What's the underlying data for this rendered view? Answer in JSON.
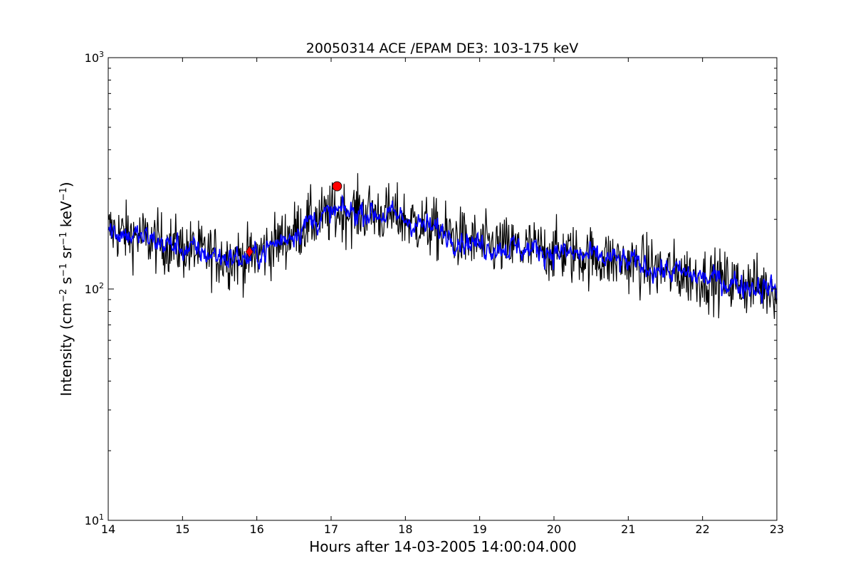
{
  "chart_data": {
    "type": "line",
    "title": "20050314 ACE /EPAM DE3: 103-175 keV",
    "xlabel": "Hours after 14-03-2005 14:00:04.000",
    "ylabel_main": "Intensity (cm",
    "ylabel_sup1": "−2",
    "ylabel_s": " s",
    "ylabel_sup2": "−1",
    "ylabel_sr": " sr",
    "ylabel_sup3": "−1",
    "ylabel_kev": " keV",
    "ylabel_sup4": "−1",
    "ylabel_close": ")",
    "xlim": [
      14,
      23
    ],
    "ylim": [
      10,
      1000
    ],
    "yscale": "log",
    "xticks": [
      "14",
      "15",
      "16",
      "17",
      "18",
      "19",
      "20",
      "21",
      "22",
      "23"
    ],
    "yticks": [
      {
        "value": 10,
        "base": "10",
        "exp": "1"
      },
      {
        "value": 100,
        "base": "10",
        "exp": "2"
      },
      {
        "value": 1000,
        "base": "10",
        "exp": "3"
      }
    ],
    "grid": false,
    "series": [
      {
        "color": "#000000",
        "style": "raw",
        "trend": [
          [
            14.0,
            180
          ],
          [
            14.5,
            165
          ],
          [
            15.0,
            150
          ],
          [
            15.5,
            138
          ],
          [
            15.9,
            135
          ],
          [
            16.3,
            160
          ],
          [
            16.7,
            195
          ],
          [
            17.1,
            215
          ],
          [
            17.5,
            215
          ],
          [
            17.9,
            205
          ],
          [
            18.3,
            185
          ],
          [
            19.0,
            155
          ],
          [
            19.5,
            150
          ],
          [
            20.0,
            145
          ],
          [
            20.5,
            138
          ],
          [
            21.0,
            130
          ],
          [
            21.5,
            120
          ],
          [
            22.0,
            112
          ],
          [
            22.5,
            105
          ],
          [
            23.0,
            100
          ]
        ],
        "spread": 0.065,
        "points_per_hour": 120
      },
      {
        "color": "#0000ff",
        "style": "smoothed",
        "trend": [
          [
            14.0,
            180
          ],
          [
            14.5,
            165
          ],
          [
            15.0,
            150
          ],
          [
            15.5,
            138
          ],
          [
            15.9,
            135
          ],
          [
            16.3,
            160
          ],
          [
            16.7,
            195
          ],
          [
            17.1,
            215
          ],
          [
            17.5,
            215
          ],
          [
            17.9,
            205
          ],
          [
            18.3,
            185
          ],
          [
            19.0,
            155
          ],
          [
            19.5,
            150
          ],
          [
            20.0,
            145
          ],
          [
            20.5,
            138
          ],
          [
            21.0,
            130
          ],
          [
            21.5,
            120
          ],
          [
            22.0,
            112
          ],
          [
            22.5,
            105
          ],
          [
            23.0,
            100
          ]
        ],
        "spread": 0.025,
        "points_per_hour": 120
      }
    ],
    "markers": [
      {
        "x": 15.9,
        "y": 145,
        "shape": "diamond",
        "color": "#ff0000"
      },
      {
        "x": 17.08,
        "y": 278,
        "shape": "circle",
        "color": "#ff0000"
      }
    ]
  }
}
